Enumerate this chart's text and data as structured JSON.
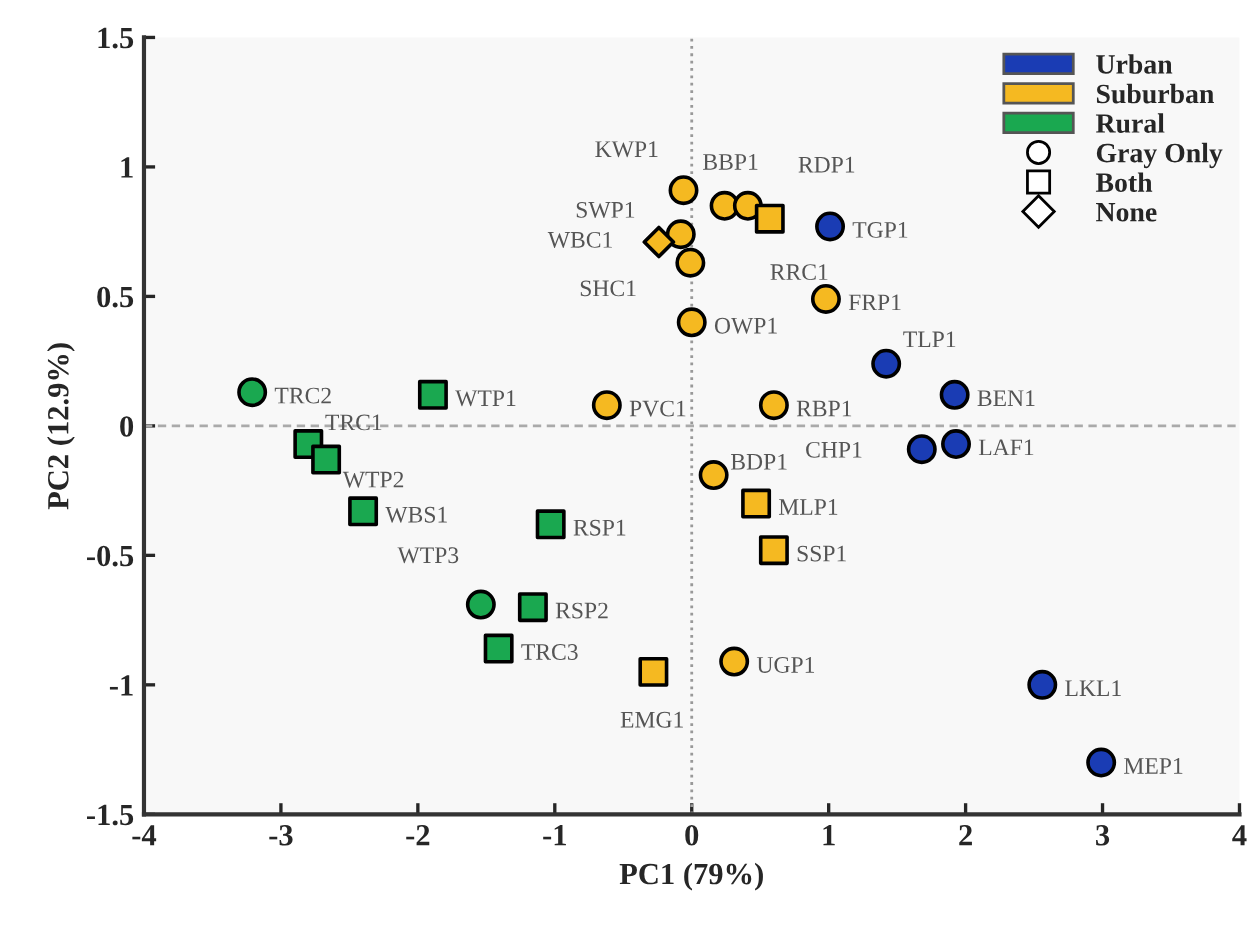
{
  "chart_data": {
    "type": "scatter",
    "xlabel": "PC1 (79%)",
    "ylabel": "PC2 (12.9%)",
    "xlim": [
      -4,
      4
    ],
    "ylim": [
      -1.5,
      1.5
    ],
    "xticks": [
      -4,
      -3,
      -2,
      -1,
      0,
      1,
      2,
      3,
      4
    ],
    "yticks": [
      -1.5,
      -1,
      -0.5,
      0,
      0.5,
      1,
      1.5
    ],
    "legend": "top right",
    "grid": false,
    "ref_lines": [
      {
        "axis": "x",
        "value": 0,
        "line_style": "dotted",
        "color": "#999999"
      },
      {
        "axis": "y",
        "value": 0,
        "line_style": "dashed",
        "color": "#aaaaaa"
      }
    ],
    "series": [
      {
        "name": "Urban",
        "color": "#1a3cb4",
        "marker": "circle",
        "x": [
          1.01,
          1.42,
          1.92,
          1.68,
          1.93,
          2.56,
          2.99
        ],
        "values": [
          0.77,
          0.24,
          0.12,
          -0.09,
          -0.07,
          -1.0,
          -1.3
        ]
      },
      {
        "name": "Suburban",
        "color": "#f5b921",
        "marker": "circle",
        "x": [
          -0.06,
          -0.08,
          -0.01,
          0.0,
          0.24,
          0.41,
          0.98,
          -0.62,
          0.6,
          0.16,
          0.31
        ],
        "values": [
          0.91,
          0.74,
          0.63,
          0.4,
          0.85,
          0.85,
          0.49,
          0.08,
          0.08,
          -0.19,
          -0.91
        ]
      },
      {
        "color": "#f5b921",
        "marker": "square",
        "x": [
          0.57,
          0.47,
          0.6,
          -0.28
        ],
        "values": [
          0.8,
          -0.3,
          -0.48,
          -0.95
        ]
      },
      {
        "color": "#f5b921",
        "marker": "diamond",
        "x": [
          -0.24
        ],
        "values": [
          0.71
        ]
      },
      {
        "name": "Rural",
        "color": "#1aa850",
        "marker": "circle",
        "x": [
          -3.21,
          -1.54
        ],
        "values": [
          0.13,
          -0.69
        ]
      },
      {
        "color": "#1aa850",
        "marker": "square",
        "x": [
          -1.89,
          -2.8,
          -2.67,
          -2.4,
          -1.03,
          -1.16,
          -1.41
        ],
        "values": [
          0.12,
          -0.07,
          -0.13,
          -0.33,
          -0.38,
          -0.7,
          -0.86
        ]
      },
      {
        "name": "Gray Only",
        "color": "#ffffff",
        "marker": "circle"
      },
      {
        "name": "Both",
        "color": "#ffffff",
        "marker": "square"
      },
      {
        "name": "None",
        "color": "#ffffff",
        "marker": "diamond"
      }
    ],
    "annotations": [
      {
        "text": "KWP1",
        "x": -0.06,
        "y": 0.91
      },
      {
        "text": "SWP1",
        "x": -0.08,
        "y": 0.74
      },
      {
        "text": "WBC1",
        "x": -0.24,
        "y": 0.71
      },
      {
        "text": "SHC1",
        "x": -0.01,
        "y": 0.63
      },
      {
        "text": "OWP1",
        "x": 0.0,
        "y": 0.4
      },
      {
        "text": "BBP1",
        "x": 0.24,
        "y": 0.85
      },
      {
        "text": "RDP1",
        "x": 0.41,
        "y": 0.85
      },
      {
        "text": "RRC1",
        "x": 0.57,
        "y": 0.8
      },
      {
        "text": "FRP1",
        "x": 0.98,
        "y": 0.49
      },
      {
        "text": "PVC1",
        "x": -0.62,
        "y": 0.08
      },
      {
        "text": "RBP1",
        "x": 0.6,
        "y": 0.08
      },
      {
        "text": "BDP1",
        "x": 0.16,
        "y": -0.19
      },
      {
        "text": "MLP1",
        "x": 0.47,
        "y": -0.3
      },
      {
        "text": "SSP1",
        "x": 0.6,
        "y": -0.48
      },
      {
        "text": "UGP1",
        "x": 0.31,
        "y": -0.91
      },
      {
        "text": "EMG1",
        "x": -0.28,
        "y": -0.95
      },
      {
        "text": "TGP1",
        "x": 1.01,
        "y": 0.77
      },
      {
        "text": "TLP1",
        "x": 1.42,
        "y": 0.24
      },
      {
        "text": "BEN1",
        "x": 1.92,
        "y": 0.12
      },
      {
        "text": "CHP1",
        "x": 1.68,
        "y": -0.09
      },
      {
        "text": "LAF1",
        "x": 1.93,
        "y": -0.07
      },
      {
        "text": "LKL1",
        "x": 2.56,
        "y": -1.0
      },
      {
        "text": "MEP1",
        "x": 2.99,
        "y": -1.3
      },
      {
        "text": "TRC2",
        "x": -3.21,
        "y": 0.13
      },
      {
        "text": "WTP1",
        "x": -1.89,
        "y": 0.12
      },
      {
        "text": "TRC1",
        "x": -2.8,
        "y": -0.07
      },
      {
        "text": "WTP2",
        "x": -2.67,
        "y": -0.13
      },
      {
        "text": "WBS1",
        "x": -2.4,
        "y": -0.33
      },
      {
        "text": "RSP1",
        "x": -1.03,
        "y": -0.38
      },
      {
        "text": "WTP3",
        "x": -1.54,
        "y": -0.69
      },
      {
        "text": "RSP2",
        "x": -1.16,
        "y": -0.7
      },
      {
        "text": "TRC3",
        "x": -1.41,
        "y": -0.86
      }
    ]
  }
}
